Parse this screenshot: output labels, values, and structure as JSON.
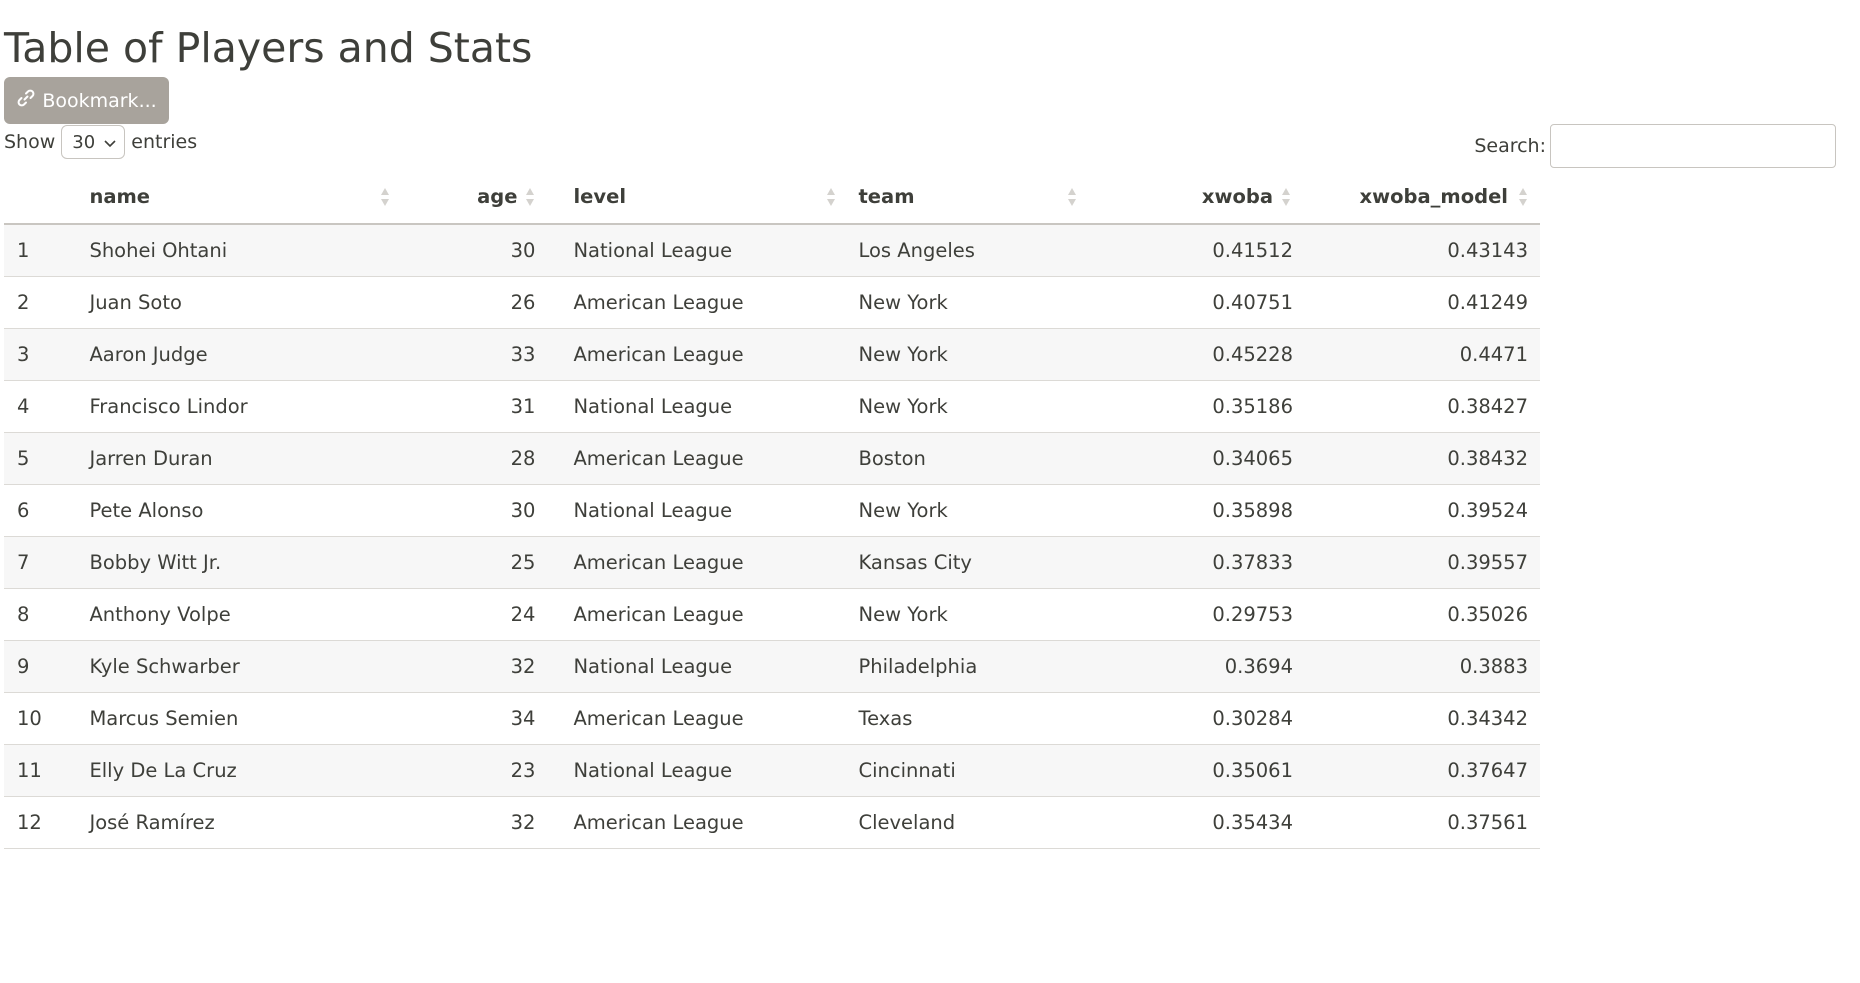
{
  "page": {
    "title": "Table of Players and Stats"
  },
  "toolbar": {
    "bookmark_label": "Bookmark..."
  },
  "length_menu": {
    "show_label": "Show",
    "selected": "30",
    "entries_label": "entries"
  },
  "search": {
    "label": "Search:",
    "value": ""
  },
  "table": {
    "columns": [
      "",
      "name",
      "age",
      "level",
      "team",
      "xwoba",
      "xwoba_model"
    ],
    "rows": [
      {
        "idx": "1",
        "name": "Shohei Ohtani",
        "age": "30",
        "level": "National League",
        "team": "Los Angeles",
        "xwoba": "0.41512",
        "xwoba_model": "0.43143"
      },
      {
        "idx": "2",
        "name": "Juan Soto",
        "age": "26",
        "level": "American League",
        "team": "New York",
        "xwoba": "0.40751",
        "xwoba_model": "0.41249"
      },
      {
        "idx": "3",
        "name": "Aaron Judge",
        "age": "33",
        "level": "American League",
        "team": "New York",
        "xwoba": "0.45228",
        "xwoba_model": "0.4471"
      },
      {
        "idx": "4",
        "name": "Francisco Lindor",
        "age": "31",
        "level": "National League",
        "team": "New York",
        "xwoba": "0.35186",
        "xwoba_model": "0.38427"
      },
      {
        "idx": "5",
        "name": "Jarren Duran",
        "age": "28",
        "level": "American League",
        "team": "Boston",
        "xwoba": "0.34065",
        "xwoba_model": "0.38432"
      },
      {
        "idx": "6",
        "name": "Pete Alonso",
        "age": "30",
        "level": "National League",
        "team": "New York",
        "xwoba": "0.35898",
        "xwoba_model": "0.39524"
      },
      {
        "idx": "7",
        "name": "Bobby Witt Jr.",
        "age": "25",
        "level": "American League",
        "team": "Kansas City",
        "xwoba": "0.37833",
        "xwoba_model": "0.39557"
      },
      {
        "idx": "8",
        "name": "Anthony Volpe",
        "age": "24",
        "level": "American League",
        "team": "New York",
        "xwoba": "0.29753",
        "xwoba_model": "0.35026"
      },
      {
        "idx": "9",
        "name": "Kyle Schwarber",
        "age": "32",
        "level": "National League",
        "team": "Philadelphia",
        "xwoba": "0.3694",
        "xwoba_model": "0.3883"
      },
      {
        "idx": "10",
        "name": "Marcus Semien",
        "age": "34",
        "level": "American League",
        "team": "Texas",
        "xwoba": "0.30284",
        "xwoba_model": "0.34342"
      },
      {
        "idx": "11",
        "name": "Elly De La Cruz",
        "age": "23",
        "level": "National League",
        "team": "Cincinnati",
        "xwoba": "0.35061",
        "xwoba_model": "0.37647"
      },
      {
        "idx": "12",
        "name": "José Ramírez",
        "age": "32",
        "level": "American League",
        "team": "Cleveland",
        "xwoba": "0.35434",
        "xwoba_model": "0.37561"
      }
    ]
  },
  "colors": {
    "text": "#3e3f3a",
    "button_bg": "#a8a39c",
    "stripe": "#f7f7f7",
    "border": "#dcdad6"
  }
}
